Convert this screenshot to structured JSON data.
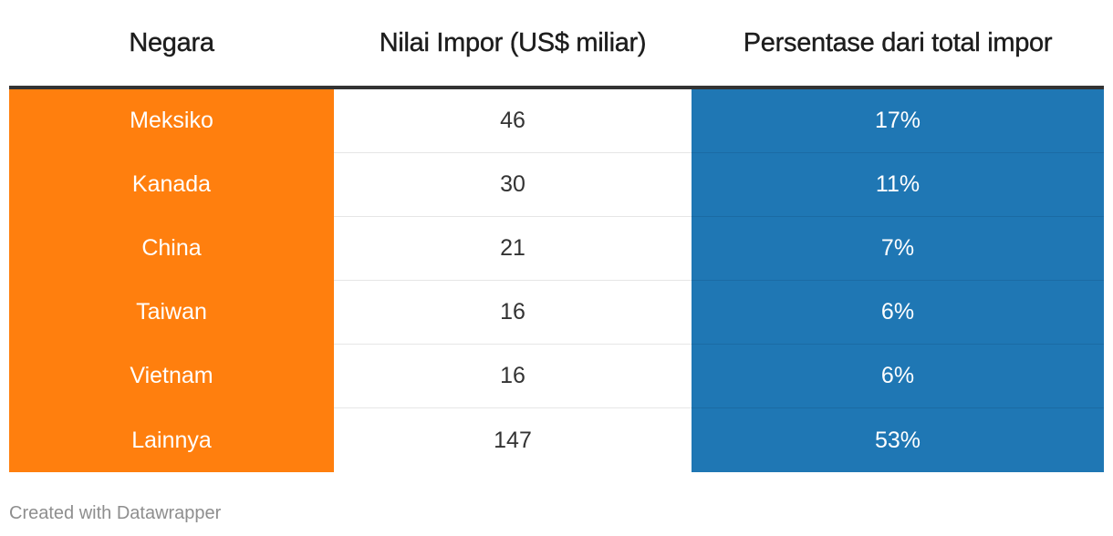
{
  "chart_data": {
    "type": "table",
    "columns": [
      "Negara",
      "Nilai Impor (US$ miliar)",
      "Persentase dari total impor"
    ],
    "rows": [
      {
        "country": "Meksiko",
        "value": "46",
        "percent": "17%"
      },
      {
        "country": "Kanada",
        "value": "30",
        "percent": "11%"
      },
      {
        "country": "China",
        "value": "21",
        "percent": "7%"
      },
      {
        "country": "Taiwan",
        "value": "16",
        "percent": "6%"
      },
      {
        "country": "Vietnam",
        "value": "16",
        "percent": "6%"
      },
      {
        "country": "Lainnya",
        "value": "147",
        "percent": "53%"
      }
    ],
    "colors": {
      "country_column": "#ff7f0e",
      "percent_column": "#1f77b4"
    }
  },
  "footer": {
    "credit": "Created with Datawrapper"
  }
}
